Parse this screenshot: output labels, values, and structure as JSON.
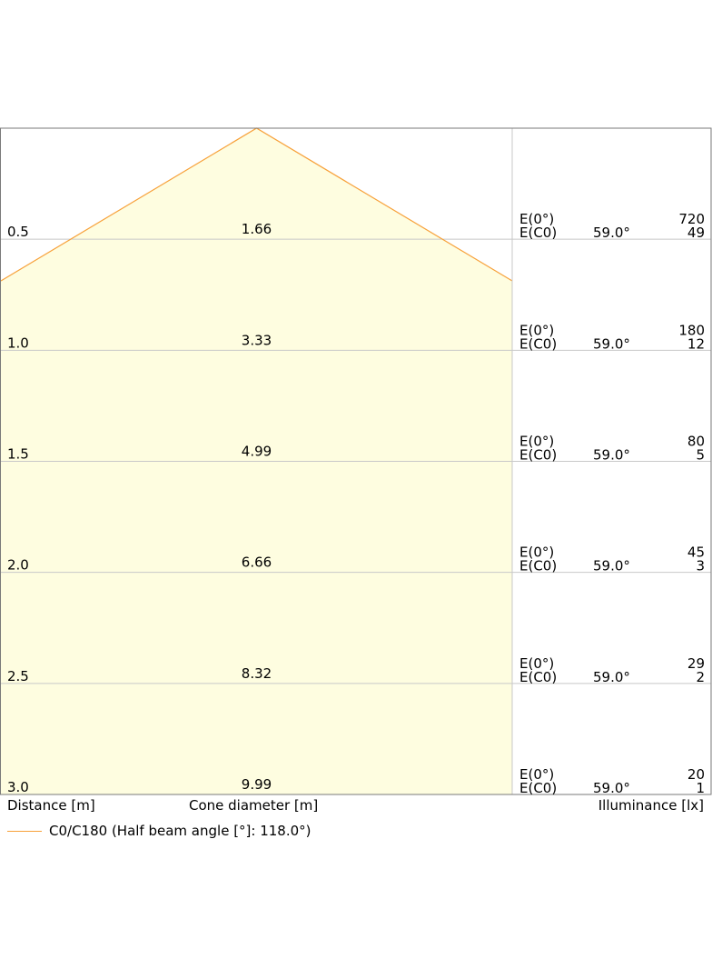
{
  "chart_data": {
    "type": "cone",
    "max_distance": 3.0,
    "max_diameter": 9.99,
    "half_beam_angle": 118.0,
    "rows": [
      {
        "distance": "0.5",
        "diameter": "1.66",
        "e0_label": "E(0°)",
        "ec0_label": "E(C0)",
        "angle": "59.0°",
        "e0": "720",
        "ec0": "49"
      },
      {
        "distance": "1.0",
        "diameter": "3.33",
        "e0_label": "E(0°)",
        "ec0_label": "E(C0)",
        "angle": "59.0°",
        "e0": "180",
        "ec0": "12"
      },
      {
        "distance": "1.5",
        "diameter": "4.99",
        "e0_label": "E(0°)",
        "ec0_label": "E(C0)",
        "angle": "59.0°",
        "e0": "80",
        "ec0": "5"
      },
      {
        "distance": "2.0",
        "diameter": "6.66",
        "e0_label": "E(0°)",
        "ec0_label": "E(C0)",
        "angle": "59.0°",
        "e0": "45",
        "ec0": "3"
      },
      {
        "distance": "2.5",
        "diameter": "8.32",
        "e0_label": "E(0°)",
        "ec0_label": "E(C0)",
        "angle": "59.0°",
        "e0": "29",
        "ec0": "2"
      },
      {
        "distance": "3.0",
        "diameter": "9.99",
        "e0_label": "E(0°)",
        "ec0_label": "E(C0)",
        "angle": "59.0°",
        "e0": "20",
        "ec0": "1"
      }
    ],
    "xlabel_distance": "Distance [m]",
    "xlabel_cone": "Cone diameter [m]",
    "xlabel_illuminance": "Illuminance [lx]",
    "legend": "C0/C180 (Half beam angle [°]: 118.0°)",
    "colors": {
      "cone_fill": "#fefde0",
      "cone_line": "#f7a13a",
      "grid": "#c8c8c8",
      "frame": "#7a7a7a"
    }
  }
}
